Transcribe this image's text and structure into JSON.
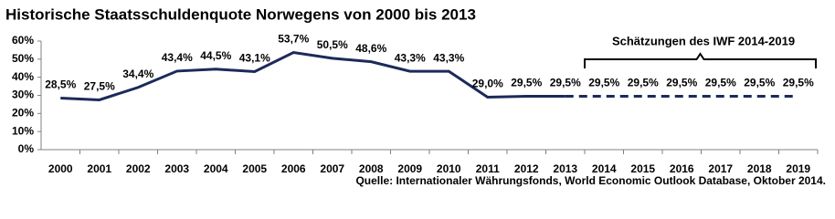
{
  "chart_data": {
    "type": "line",
    "title": "Historische Staatsschuldenquote Norwegens von 2000 bis 2013",
    "annotation": "Schätzungen des IWF 2014-2019",
    "source": "Quelle: Internationaler Währungsfonds,  World Economic Outlook Database, Oktober 2014.",
    "categories": [
      "2000",
      "2001",
      "2002",
      "2003",
      "2004",
      "2005",
      "2006",
      "2007",
      "2008",
      "2009",
      "2010",
      "2011",
      "2012",
      "2013",
      "2014",
      "2015",
      "2016",
      "2017",
      "2018",
      "2019"
    ],
    "series": [
      {
        "color": "#1c2a5a",
        "values": [
          28.5,
          27.5,
          34.4,
          43.4,
          44.5,
          43.1,
          53.7,
          50.5,
          48.6,
          43.3,
          43.3,
          29.0,
          29.5,
          29.5,
          29.5,
          29.5,
          29.5,
          29.5,
          29.5,
          29.5
        ],
        "value_labels": [
          "28,5%",
          "27,5%",
          "34,4%",
          "43,4%",
          "44,5%",
          "43,1%",
          "53,7%",
          "50,5%",
          "48,6%",
          "43,3%",
          "43,3%",
          "29,0%",
          "29,5%",
          "29,5%",
          "29,5%",
          "29,5%",
          "29,5%",
          "29,5%",
          "29,5%",
          "29,5%"
        ],
        "dashed": [
          false,
          false,
          false,
          false,
          false,
          false,
          false,
          false,
          false,
          false,
          false,
          false,
          false,
          false,
          true,
          true,
          true,
          true,
          true,
          true
        ]
      }
    ],
    "ylim": [
      0,
      60
    ],
    "yticks": [
      {
        "value": 0,
        "label": "0%"
      },
      {
        "value": 10,
        "label": "10%"
      },
      {
        "value": 20,
        "label": "20%"
      },
      {
        "value": 30,
        "label": "30%"
      },
      {
        "value": 40,
        "label": "40%"
      },
      {
        "value": 50,
        "label": "50%"
      },
      {
        "value": 60,
        "label": "60%"
      }
    ],
    "grid": false
  }
}
